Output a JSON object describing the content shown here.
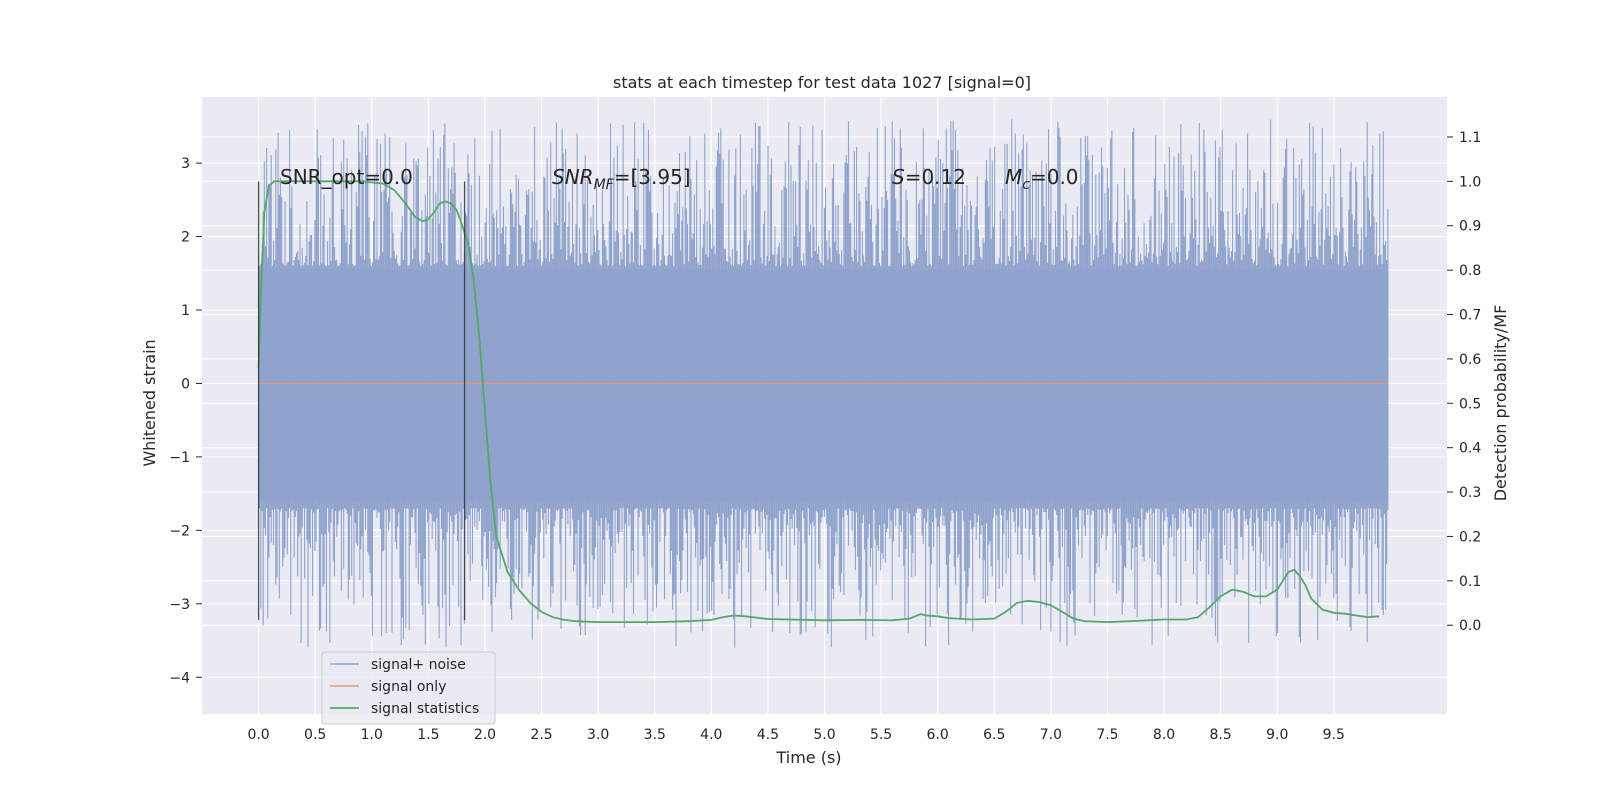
{
  "chart_data": {
    "type": "line",
    "title": "stats at each timestep for test data 1027 [signal=0]",
    "xlabel": "Time (s)",
    "ylabel": "Whitened strain",
    "y2label": "Detection probability/MF",
    "xlim": [
      -0.5,
      10.5
    ],
    "ylim": [
      -4.5,
      3.9
    ],
    "y2lim": [
      -0.2,
      1.19
    ],
    "x_ticks": [
      "0.0",
      "0.5",
      "1.0",
      "1.5",
      "2.0",
      "2.5",
      "3.0",
      "3.5",
      "4.0",
      "4.5",
      "5.0",
      "5.5",
      "6.0",
      "6.5",
      "7.0",
      "7.5",
      "8.0",
      "8.5",
      "9.0",
      "9.5"
    ],
    "y_ticks": [
      "3",
      "2",
      "1",
      "0",
      "−1",
      "−2",
      "−3",
      "−4"
    ],
    "y2_ticks": [
      "1.1",
      "1.0",
      "0.9",
      "0.8",
      "0.7",
      "0.6",
      "0.5",
      "0.4",
      "0.3",
      "0.2",
      "0.1",
      "0.0"
    ],
    "grid": true,
    "legend_position": "lower-left",
    "annotations": {
      "snr_opt": "SNR_opt=0.0",
      "snr_mf_main": "SNR",
      "snr_mf_sub": "MF",
      "snr_mf_value": "=[3.95]",
      "s_symbol": "S",
      "s_value": "=0.12",
      "mc_main": "M",
      "mc_sub": "c",
      "mc_value": "=0.0"
    },
    "vlines_x": [
      0.0,
      1.82
    ],
    "series": [
      {
        "name": "signal+ noise",
        "color": "#8fa3cc",
        "axis": "left",
        "x_range": [
          0.0,
          9.98
        ],
        "band_abs": [
          1.5,
          1.6
        ],
        "spike_max": 3.6,
        "spike_min": -3.6
      },
      {
        "name": "signal only",
        "color": "#e8967a",
        "axis": "left",
        "x": [
          0.0,
          9.98
        ],
        "y": [
          0.0,
          0.0
        ]
      },
      {
        "name": "signal statistics",
        "color": "#55a868",
        "axis": "right",
        "x": [
          0.0,
          0.02,
          0.05,
          0.09,
          0.14,
          0.2,
          0.3,
          0.5,
          0.7,
          0.9,
          1.1,
          1.2,
          1.3,
          1.38,
          1.45,
          1.5,
          1.55,
          1.6,
          1.65,
          1.7,
          1.75,
          1.8,
          1.85,
          1.9,
          1.95,
          2.0,
          2.05,
          2.1,
          2.15,
          2.2,
          2.3,
          2.4,
          2.5,
          2.6,
          2.7,
          2.8,
          3.0,
          3.2,
          3.5,
          3.8,
          4.0,
          4.1,
          4.2,
          4.3,
          4.5,
          5.0,
          5.3,
          5.6,
          5.75,
          5.85,
          5.9,
          6.0,
          6.1,
          6.3,
          6.5,
          6.6,
          6.7,
          6.8,
          6.9,
          7.0,
          7.1,
          7.2,
          7.3,
          7.5,
          7.7,
          8.0,
          8.2,
          8.3,
          8.4,
          8.5,
          8.6,
          8.65,
          8.7,
          8.8,
          8.9,
          9.0,
          9.05,
          9.1,
          9.15,
          9.2,
          9.25,
          9.3,
          9.4,
          9.5,
          9.6,
          9.7,
          9.8,
          9.9
        ],
        "y": [
          0.58,
          0.75,
          0.93,
          0.99,
          1.0,
          1.0,
          1.0,
          1.0,
          1.0,
          1.0,
          0.995,
          0.98,
          0.95,
          0.92,
          0.91,
          0.915,
          0.93,
          0.95,
          0.955,
          0.95,
          0.935,
          0.9,
          0.86,
          0.78,
          0.65,
          0.48,
          0.32,
          0.2,
          0.16,
          0.12,
          0.08,
          0.05,
          0.03,
          0.018,
          0.012,
          0.009,
          0.007,
          0.007,
          0.007,
          0.009,
          0.012,
          0.018,
          0.022,
          0.02,
          0.014,
          0.011,
          0.012,
          0.011,
          0.015,
          0.025,
          0.022,
          0.02,
          0.016,
          0.013,
          0.015,
          0.03,
          0.05,
          0.055,
          0.052,
          0.045,
          0.03,
          0.015,
          0.009,
          0.007,
          0.009,
          0.013,
          0.013,
          0.018,
          0.04,
          0.065,
          0.08,
          0.078,
          0.075,
          0.065,
          0.065,
          0.08,
          0.1,
          0.12,
          0.125,
          0.11,
          0.09,
          0.06,
          0.035,
          0.028,
          0.026,
          0.022,
          0.018,
          0.02
        ]
      }
    ]
  }
}
